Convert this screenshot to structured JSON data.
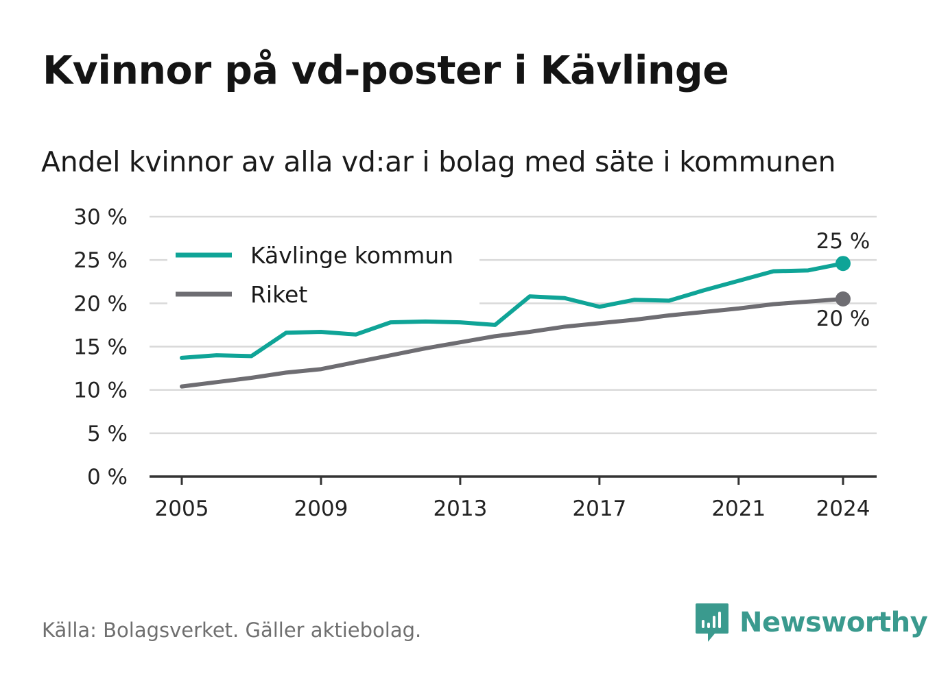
{
  "header": {
    "title": "Kvinnor på vd-poster i Kävlinge",
    "subtitle": "Andel kvinnor av alla vd:ar i bolag med säte i kommunen"
  },
  "footer": {
    "source": "Källa: Bolagsverket. Gäller aktiebolag.",
    "brand": "Newsworthy"
  },
  "colors": {
    "kavlinge": "#0fa497",
    "riket": "#6e6d72",
    "grid": "#d9d9d9",
    "axis": "#333333",
    "brand": "#3a9a8e"
  },
  "icons": {
    "logo": "newsworthy-chart-icon"
  },
  "chart_data": {
    "type": "line",
    "x": [
      2005,
      2006,
      2007,
      2008,
      2009,
      2010,
      2011,
      2012,
      2013,
      2014,
      2015,
      2016,
      2017,
      2018,
      2019,
      2020,
      2021,
      2022,
      2023,
      2024
    ],
    "series": [
      {
        "name": "Kävlinge kommun",
        "values": [
          13.7,
          14.0,
          13.9,
          16.6,
          16.7,
          16.4,
          17.8,
          17.9,
          17.8,
          17.5,
          20.8,
          20.6,
          19.6,
          20.4,
          20.3,
          21.5,
          22.6,
          23.7,
          23.8,
          24.6
        ],
        "end_label": "25 %"
      },
      {
        "name": "Riket",
        "values": [
          10.4,
          10.9,
          11.4,
          12.0,
          12.4,
          13.2,
          14.0,
          14.8,
          15.5,
          16.2,
          16.7,
          17.3,
          17.7,
          18.1,
          18.6,
          19.0,
          19.4,
          19.9,
          20.2,
          20.5
        ],
        "end_label": "20 %"
      }
    ],
    "ylim": [
      0,
      30
    ],
    "y_ticks": [
      0,
      5,
      10,
      15,
      20,
      25,
      30
    ],
    "y_tick_labels": [
      "0 %",
      "5 %",
      "10 %",
      "15 %",
      "20 %",
      "25 %",
      "30 %"
    ],
    "x_ticks": [
      2005,
      2009,
      2013,
      2017,
      2021,
      2024
    ],
    "x_tick_labels": [
      "2005",
      "2009",
      "2013",
      "2017",
      "2021",
      "2024"
    ],
    "xlabel": "",
    "ylabel": "",
    "grid": true,
    "legend_position": "top-left"
  }
}
